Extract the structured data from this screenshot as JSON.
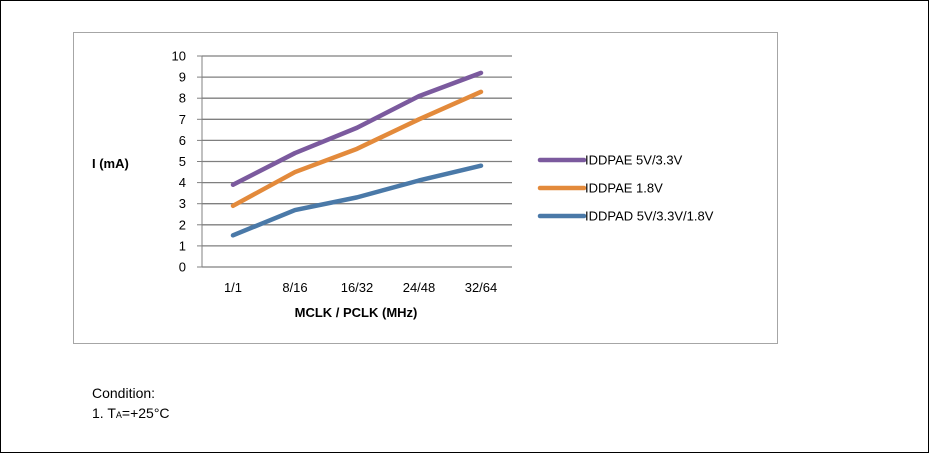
{
  "chart_data": {
    "type": "line",
    "categories": [
      "1/1",
      "8/16",
      "16/32",
      "24/48",
      "32/64"
    ],
    "xlabel": "MCLK / PCLK (MHz)",
    "ylabel": "I (mA)",
    "ylim": [
      0,
      10
    ],
    "yticks": [
      "0",
      "1",
      "2",
      "3",
      "4",
      "5",
      "6",
      "7",
      "8",
      "9",
      "10"
    ],
    "grid": true,
    "legend_position": "right",
    "series": [
      {
        "name": "IDDPAE 5V/3.3V",
        "color": "#7b5a9e",
        "values": [
          3.9,
          5.4,
          6.6,
          8.1,
          9.2
        ]
      },
      {
        "name": "IDDPAE 1.8V",
        "color": "#e38a3b",
        "values": [
          2.9,
          4.5,
          5.6,
          7.0,
          8.3
        ]
      },
      {
        "name": "IDDPAD 5V/3.3V/1.8V",
        "color": "#4a79a8",
        "values": [
          1.5,
          2.7,
          3.3,
          4.1,
          4.8
        ]
      }
    ]
  },
  "condition": {
    "title": "Condition:",
    "item_prefix": "1. T",
    "item_sub": "A",
    "item_suffix": "=+25°C"
  }
}
